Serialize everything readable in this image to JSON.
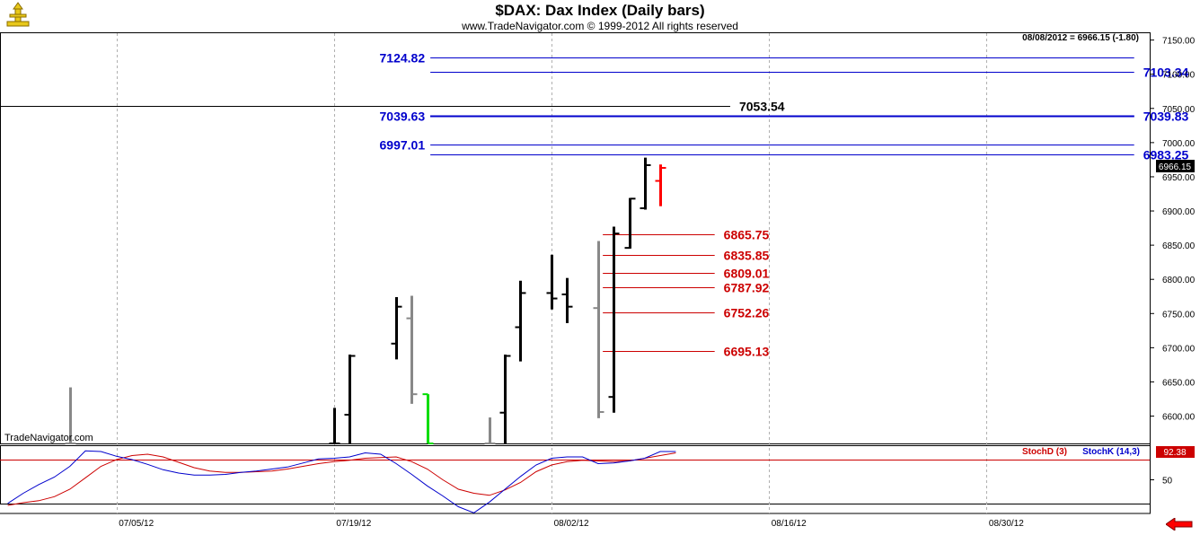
{
  "header": {
    "title": "$DAX:  Dax Index  (Daily bars)",
    "subtitle": "www.TradeNavigator.com © 1999-2012 All rights reserved",
    "date_readout": "08/08/2012 = 6966.15 (-1.80)",
    "current_price_label": "6966.15",
    "watermark": "TradeNavigator.com"
  },
  "colors": {
    "bar_normal": "#000000",
    "bar_faded": "#888888",
    "bar_green": "#00dd00",
    "bar_red": "#ff0000",
    "level_blue": "#0000cc",
    "level_red": "#cc0000",
    "level_black": "#000000",
    "stoch_k": "#0000cc",
    "stoch_d": "#cc0000",
    "arrow_red": "#ff0000"
  },
  "chart_data": [
    {
      "type": "ohlc",
      "ylim": [
        6560,
        7160
      ],
      "y_ticks": [
        "7150.00",
        "7100.00",
        "7050.00",
        "7000.00",
        "6950.00",
        "6900.00",
        "6850.00",
        "6800.00",
        "6750.00",
        "6700.00",
        "6650.00",
        "6600.00"
      ],
      "y_tick_values": [
        7150,
        7100,
        7050,
        7000,
        6950,
        6900,
        6850,
        6800,
        6750,
        6700,
        6650,
        6600
      ],
      "x_ticks": [
        "07/05/12",
        "07/19/12",
        "08/02/12",
        "08/16/12",
        "08/30/12"
      ],
      "x_tick_days": [
        5,
        19,
        33,
        47,
        61
      ],
      "xlim": [
        -2.5,
        71.5
      ],
      "bars": [
        {
          "day": 2,
          "open": 6560,
          "high": 6642,
          "low": 6560,
          "close": 6560,
          "color": "faded"
        },
        {
          "day": 19,
          "open": 6560,
          "high": 6612,
          "low": 6560,
          "close": 6560,
          "color": "normal"
        },
        {
          "day": 20,
          "open": 6602,
          "high": 6690,
          "low": 6560,
          "close": 6688,
          "color": "normal"
        },
        {
          "day": 23,
          "open": 6706,
          "high": 6774,
          "low": 6683,
          "close": 6760,
          "color": "normal"
        },
        {
          "day": 24,
          "open": 6743,
          "high": 6776,
          "low": 6618,
          "close": 6632,
          "color": "faded"
        },
        {
          "day": 25,
          "open": 6632,
          "high": 6632,
          "low": 6560,
          "close": 6560,
          "color": "green"
        },
        {
          "day": 29,
          "open": 6560,
          "high": 6598,
          "low": 6560,
          "close": 6560,
          "color": "faded"
        },
        {
          "day": 30,
          "open": 6605,
          "high": 6690,
          "low": 6560,
          "close": 6688,
          "color": "normal"
        },
        {
          "day": 31,
          "open": 6730,
          "high": 6798,
          "low": 6680,
          "close": 6780,
          "color": "normal"
        },
        {
          "day": 33,
          "open": 6780,
          "high": 6836,
          "low": 6756,
          "close": 6772,
          "color": "normal"
        },
        {
          "day": 34,
          "open": 6778,
          "high": 6802,
          "low": 6736,
          "close": 6760,
          "color": "normal"
        },
        {
          "day": 36,
          "open": 6758,
          "high": 6856,
          "low": 6597,
          "close": 6606,
          "color": "faded"
        },
        {
          "day": 37,
          "open": 6628,
          "high": 6877,
          "low": 6605,
          "close": 6867,
          "color": "normal"
        },
        {
          "day": 38,
          "open": 6846,
          "high": 6919,
          "low": 6845,
          "close": 6918,
          "color": "normal"
        },
        {
          "day": 39,
          "open": 6904,
          "high": 6978,
          "low": 6902,
          "close": 6967,
          "color": "normal"
        },
        {
          "day": 40,
          "open": 6944,
          "high": 6968,
          "low": 6907,
          "close": 6963,
          "color": "red"
        }
      ],
      "levels": [
        {
          "value": 7124.82,
          "label": "7124.82",
          "x0_day": 25.2,
          "x1_day": 70.5,
          "label_side": "left",
          "color": "blue"
        },
        {
          "value": 7103.34,
          "label": "7103.34",
          "x0_day": 25.2,
          "x1_day": 70.5,
          "label_side": "right",
          "color": "blue"
        },
        {
          "value": 7053.54,
          "label": "7053.54",
          "x0_day": -2.5,
          "x1_day": 44.5,
          "label_side": "after",
          "color": "black"
        },
        {
          "value": 7039.63,
          "label": "7039.63",
          "x0_day": 25.2,
          "x1_day": 70.5,
          "label_side": "left",
          "color": "blue",
          "thick": true
        },
        {
          "value": 7039.83,
          "label": "7039.83",
          "x0_day": 25.2,
          "x1_day": 70.5,
          "label_side": "right",
          "color": "blue",
          "thick": true
        },
        {
          "value": 6997.01,
          "label": "6997.01",
          "x0_day": 25.2,
          "x1_day": 70.5,
          "label_side": "left",
          "color": "blue"
        },
        {
          "value": 6983.25,
          "label": "6983.25",
          "x0_day": 25.2,
          "x1_day": 70.5,
          "label_side": "right",
          "color": "blue"
        },
        {
          "value": 6865.75,
          "label": "6865.75",
          "x0_day": 36.3,
          "x1_day": 43.5,
          "label_side": "after",
          "color": "red"
        },
        {
          "value": 6835.85,
          "label": "6835.85",
          "x0_day": 36.3,
          "x1_day": 43.5,
          "label_side": "after",
          "color": "red"
        },
        {
          "value": 6809.01,
          "label": "6809.01",
          "x0_day": 36.3,
          "x1_day": 43.5,
          "label_side": "after",
          "color": "red"
        },
        {
          "value": 6787.92,
          "label": "6787.92",
          "x0_day": 36.3,
          "x1_day": 43.5,
          "label_side": "after",
          "color": "red"
        },
        {
          "value": 6752.26,
          "label": "6752.26",
          "x0_day": 36.3,
          "x1_day": 43.5,
          "label_side": "after",
          "color": "red"
        },
        {
          "value": 6695.13,
          "label": "6695.13",
          "x0_day": 36.3,
          "x1_day": 43.5,
          "label_side": "after",
          "color": "red"
        }
      ]
    },
    {
      "type": "line",
      "ylim": [
        0,
        100
      ],
      "y_ticks": [
        "50"
      ],
      "y_tick_values": [
        50
      ],
      "reference_line": 80,
      "last_value_label": "92.38",
      "series": [
        {
          "name": "StochD (3)",
          "color": "stoch_d",
          "x": [
            -2,
            -1,
            0,
            1,
            2,
            3,
            4,
            5,
            6,
            7,
            8,
            9,
            10,
            11,
            12,
            13,
            14,
            15,
            16,
            17,
            18,
            19,
            20,
            21,
            22,
            23,
            24,
            25,
            26,
            27,
            28,
            29,
            30,
            31,
            32,
            33,
            34,
            35,
            36,
            37,
            38,
            39,
            40,
            41
          ],
          "y": [
            12,
            16,
            19,
            25,
            36,
            53,
            70,
            80,
            86,
            88,
            84,
            76,
            68,
            63,
            61,
            61,
            62,
            63,
            66,
            70,
            74,
            77,
            79,
            82,
            83,
            84,
            77,
            66,
            50,
            36,
            30,
            27,
            35,
            46,
            62,
            72,
            77,
            79,
            78,
            77,
            78,
            82,
            86,
            90
          ]
        },
        {
          "name": "StochK (14,3)",
          "color": "stoch_k",
          "x": [
            -2,
            -1,
            0,
            1,
            2,
            3,
            4,
            5,
            6,
            7,
            8,
            9,
            10,
            11,
            12,
            13,
            14,
            15,
            16,
            17,
            18,
            19,
            20,
            21,
            22,
            23,
            24,
            25,
            26,
            27,
            28,
            29,
            30,
            31,
            32,
            33,
            34,
            35,
            36,
            37,
            38,
            39,
            40,
            41
          ],
          "y": [
            15,
            30,
            43,
            54,
            70,
            93,
            92,
            85,
            80,
            73,
            65,
            60,
            57,
            57,
            58,
            61,
            63,
            66,
            69,
            75,
            81,
            82,
            84,
            90,
            88,
            74,
            58,
            41,
            26,
            10,
            1,
            17,
            36,
            55,
            72,
            82,
            84,
            84,
            74,
            75,
            78,
            82,
            92,
            92
          ]
        }
      ],
      "legend": [
        "StochD (3)",
        "StochK (14,3)"
      ]
    }
  ]
}
